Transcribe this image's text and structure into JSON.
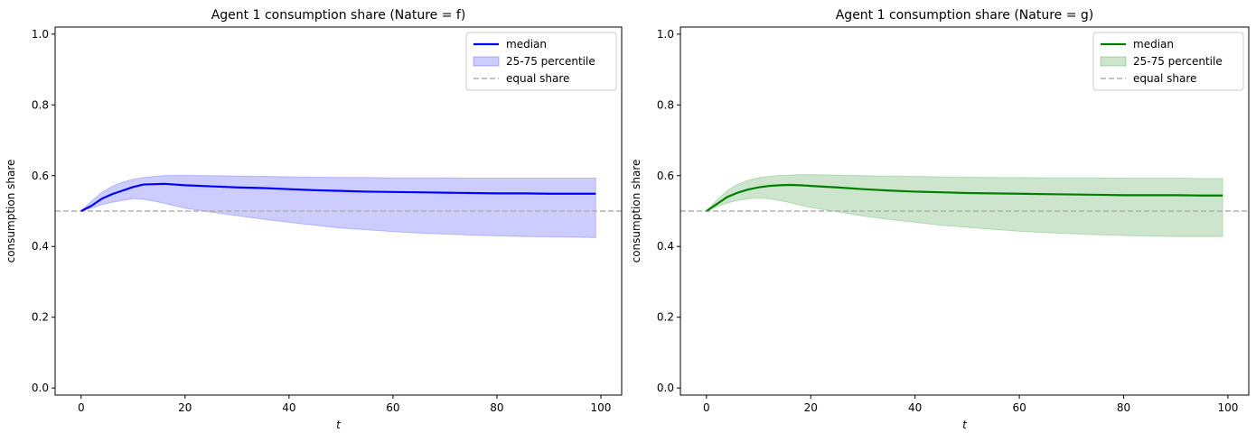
{
  "chart_data": [
    {
      "type": "line",
      "title": "Agent 1 consumption share (Nature = f)",
      "xlabel": "t",
      "ylabel": "consumption share",
      "xlim": [
        -5,
        104
      ],
      "ylim": [
        -0.02,
        1.02
      ],
      "xticks": [
        "0",
        "20",
        "40",
        "60",
        "80",
        "100"
      ],
      "yticks": [
        "0.0",
        "0.2",
        "0.4",
        "0.6",
        "0.8",
        "1.0"
      ],
      "grid": false,
      "legend_position": "top-right",
      "color": "#0000ff",
      "band_color": "#ccccff",
      "reference_color": "#b0b0b0",
      "legend": {
        "median": "median",
        "band": "25-75 percentile",
        "reference": "equal share"
      },
      "reference_value": 0.5,
      "x": [
        0,
        2,
        4,
        6,
        8,
        10,
        12,
        14,
        16,
        18,
        20,
        25,
        30,
        35,
        40,
        45,
        50,
        55,
        60,
        65,
        70,
        75,
        80,
        85,
        90,
        95,
        99
      ],
      "median": [
        0.5,
        0.515,
        0.535,
        0.548,
        0.558,
        0.568,
        0.575,
        0.576,
        0.577,
        0.575,
        0.573,
        0.57,
        0.567,
        0.565,
        0.562,
        0.559,
        0.557,
        0.555,
        0.554,
        0.553,
        0.552,
        0.551,
        0.55,
        0.55,
        0.549,
        0.549,
        0.549
      ],
      "p25": [
        0.5,
        0.508,
        0.518,
        0.525,
        0.53,
        0.535,
        0.533,
        0.528,
        0.522,
        0.515,
        0.508,
        0.497,
        0.487,
        0.477,
        0.468,
        0.46,
        0.452,
        0.447,
        0.442,
        0.438,
        0.435,
        0.432,
        0.43,
        0.428,
        0.427,
        0.426,
        0.425
      ],
      "p75": [
        0.5,
        0.528,
        0.553,
        0.57,
        0.582,
        0.59,
        0.595,
        0.598,
        0.6,
        0.601,
        0.601,
        0.6,
        0.599,
        0.598,
        0.597,
        0.596,
        0.595,
        0.595,
        0.594,
        0.594,
        0.594,
        0.593,
        0.593,
        0.593,
        0.593,
        0.593,
        0.593
      ]
    },
    {
      "type": "line",
      "title": "Agent 1 consumption share (Nature = g)",
      "xlabel": "t",
      "ylabel": "consumption share",
      "xlim": [
        -5,
        104
      ],
      "ylim": [
        -0.02,
        1.02
      ],
      "xticks": [
        "0",
        "20",
        "40",
        "60",
        "80",
        "100"
      ],
      "yticks": [
        "0.0",
        "0.2",
        "0.4",
        "0.6",
        "0.8",
        "1.0"
      ],
      "grid": false,
      "legend_position": "top-right",
      "color": "#008000",
      "band_color": "#cce5cc",
      "reference_color": "#b0b0b0",
      "legend": {
        "median": "median",
        "band": "25-75 percentile",
        "reference": "equal share"
      },
      "reference_value": 0.5,
      "x": [
        0,
        2,
        4,
        6,
        8,
        10,
        12,
        14,
        16,
        18,
        20,
        25,
        30,
        35,
        40,
        45,
        50,
        55,
        60,
        65,
        70,
        75,
        80,
        85,
        90,
        95,
        99
      ],
      "median": [
        0.5,
        0.52,
        0.54,
        0.552,
        0.561,
        0.567,
        0.571,
        0.573,
        0.574,
        0.573,
        0.571,
        0.567,
        0.562,
        0.558,
        0.555,
        0.553,
        0.551,
        0.55,
        0.549,
        0.548,
        0.547,
        0.546,
        0.545,
        0.545,
        0.545,
        0.544,
        0.544
      ],
      "p25": [
        0.5,
        0.512,
        0.523,
        0.53,
        0.535,
        0.537,
        0.535,
        0.53,
        0.524,
        0.517,
        0.51,
        0.498,
        0.486,
        0.476,
        0.468,
        0.46,
        0.454,
        0.448,
        0.443,
        0.439,
        0.436,
        0.433,
        0.431,
        0.429,
        0.428,
        0.428,
        0.428
      ],
      "p75": [
        0.5,
        0.532,
        0.558,
        0.576,
        0.587,
        0.594,
        0.598,
        0.601,
        0.602,
        0.603,
        0.603,
        0.602,
        0.6,
        0.599,
        0.598,
        0.597,
        0.596,
        0.595,
        0.595,
        0.594,
        0.594,
        0.594,
        0.593,
        0.593,
        0.593,
        0.592,
        0.592
      ]
    }
  ]
}
